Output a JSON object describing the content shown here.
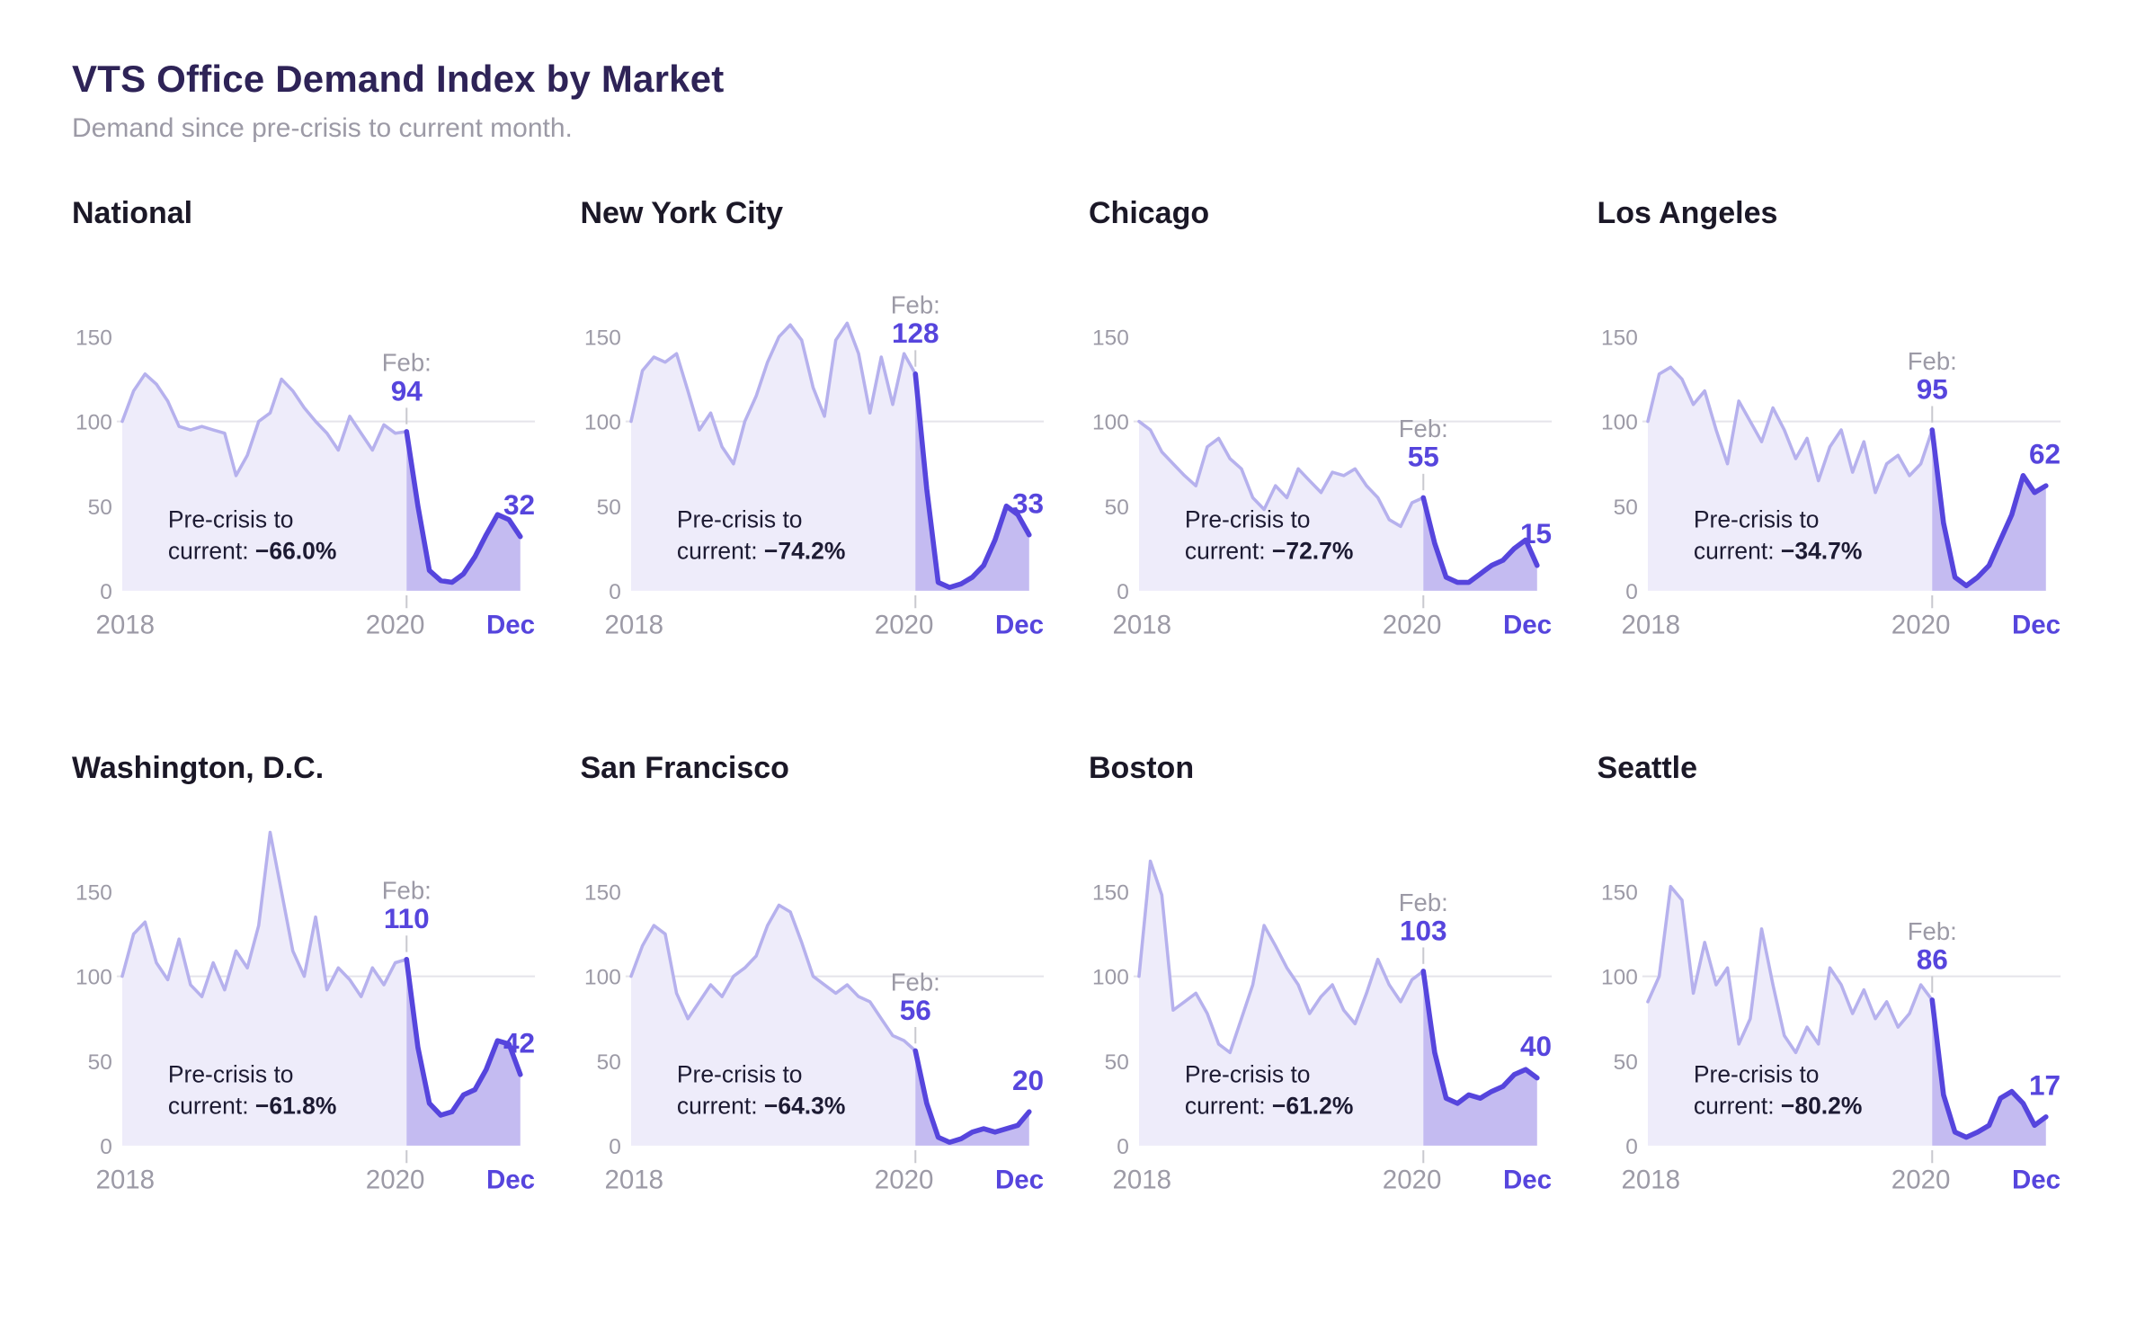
{
  "page": {
    "title": "VTS Office Demand Index by Market",
    "subtitle": "Demand since pre-crisis to current month."
  },
  "colors": {
    "accent": "#5645dd",
    "pre_line": "#b6b1ed",
    "pre_fill": "#eeecfa",
    "post_line": "#5645dd",
    "post_fill": "#c4bbf1",
    "gridline": "#e5e4ea",
    "tick_mark": "#c9c9cf",
    "muted_text": "#9c9aa6",
    "dark_text": "#1d1b33",
    "title_text": "#2e2357"
  },
  "panel_common": {
    "x_labels": {
      "start": "2018",
      "mid": "2020",
      "end": "Dec"
    },
    "feb_prefix": "Feb:",
    "precrisis_line1": "Pre-crisis to",
    "precrisis_line2_prefix": "current: ",
    "y_ticks": [
      150,
      100,
      50,
      0
    ],
    "ylim": [
      0,
      150
    ],
    "x_range_months": 36,
    "crisis_month_index": 25,
    "crisis_month": "Feb 2020",
    "current_month": "Dec 2020"
  },
  "chart_data": [
    {
      "type": "area",
      "title": "National",
      "feb_value": 94,
      "dec_value": 32,
      "change_value": "−66.0%",
      "values": [
        100,
        118,
        128,
        122,
        112,
        97,
        95,
        97,
        95,
        93,
        68,
        80,
        100,
        105,
        125,
        118,
        108,
        100,
        93,
        83,
        103,
        93,
        83,
        98,
        93,
        94,
        50,
        12,
        6,
        5,
        10,
        20,
        33,
        45,
        42,
        32
      ]
    },
    {
      "type": "area",
      "title": "New York City",
      "feb_value": 128,
      "dec_value": 33,
      "change_value": "−74.2%",
      "values": [
        100,
        130,
        138,
        135,
        140,
        118,
        95,
        105,
        85,
        75,
        100,
        115,
        135,
        150,
        157,
        148,
        120,
        103,
        148,
        158,
        140,
        105,
        138,
        110,
        140,
        128,
        60,
        5,
        2,
        4,
        8,
        15,
        30,
        50,
        45,
        33
      ]
    },
    {
      "type": "area",
      "title": "Chicago",
      "feb_value": 55,
      "dec_value": 15,
      "change_value": "−72.7%",
      "values": [
        100,
        95,
        82,
        75,
        68,
        62,
        85,
        90,
        78,
        72,
        55,
        48,
        62,
        55,
        72,
        65,
        58,
        70,
        68,
        72,
        62,
        55,
        42,
        38,
        52,
        55,
        28,
        8,
        5,
        5,
        10,
        15,
        18,
        25,
        30,
        15
      ]
    },
    {
      "type": "area",
      "title": "Los Angeles",
      "feb_value": 95,
      "dec_value": 62,
      "change_value": "−34.7%",
      "values": [
        100,
        128,
        132,
        125,
        110,
        118,
        95,
        75,
        112,
        100,
        88,
        108,
        95,
        78,
        90,
        65,
        85,
        95,
        70,
        88,
        58,
        75,
        80,
        68,
        75,
        95,
        40,
        8,
        3,
        8,
        15,
        30,
        45,
        68,
        58,
        62
      ]
    },
    {
      "type": "area",
      "title": "Washington, D.C.",
      "feb_value": 110,
      "dec_value": 42,
      "change_value": "−61.8%",
      "values": [
        100,
        125,
        132,
        108,
        98,
        122,
        95,
        88,
        108,
        92,
        115,
        105,
        130,
        185,
        150,
        115,
        100,
        135,
        92,
        105,
        98,
        88,
        105,
        95,
        108,
        110,
        58,
        25,
        18,
        20,
        30,
        33,
        45,
        62,
        60,
        42
      ]
    },
    {
      "type": "area",
      "title": "San Francisco",
      "feb_value": 56,
      "dec_value": 20,
      "change_value": "−64.3%",
      "values": [
        100,
        118,
        130,
        125,
        90,
        75,
        85,
        95,
        88,
        100,
        105,
        112,
        130,
        142,
        138,
        120,
        100,
        95,
        90,
        95,
        88,
        85,
        75,
        65,
        62,
        56,
        25,
        5,
        2,
        4,
        8,
        10,
        8,
        10,
        12,
        20
      ]
    },
    {
      "type": "area",
      "title": "Boston",
      "feb_value": 103,
      "dec_value": 40,
      "change_value": "−61.2%",
      "values": [
        100,
        168,
        148,
        80,
        85,
        90,
        78,
        60,
        55,
        75,
        95,
        130,
        118,
        105,
        95,
        78,
        88,
        95,
        80,
        72,
        90,
        110,
        95,
        85,
        98,
        103,
        55,
        28,
        25,
        30,
        28,
        32,
        35,
        42,
        45,
        40
      ]
    },
    {
      "type": "area",
      "title": "Seattle",
      "feb_value": 86,
      "dec_value": 17,
      "change_value": "−80.2%",
      "values": [
        85,
        100,
        153,
        145,
        90,
        120,
        95,
        105,
        60,
        75,
        128,
        95,
        65,
        55,
        70,
        60,
        105,
        95,
        78,
        92,
        75,
        85,
        70,
        78,
        95,
        86,
        30,
        8,
        5,
        8,
        12,
        28,
        32,
        25,
        12,
        17
      ]
    }
  ]
}
